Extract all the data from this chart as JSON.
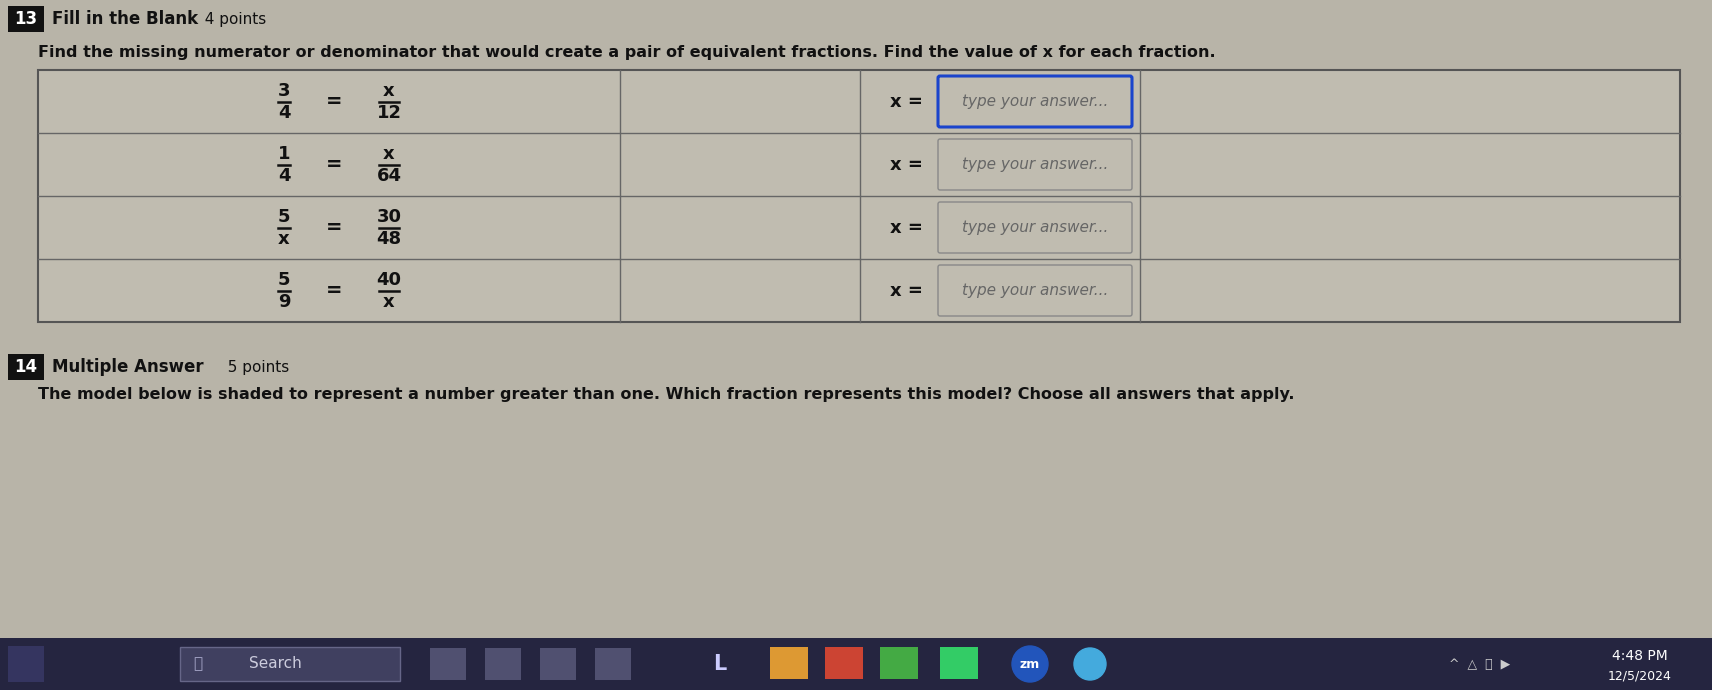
{
  "bg_color": "#b8b4a8",
  "table_bg": "#c0bcb0",
  "header_bg": "#111111",
  "question_num_13": "13",
  "question_num_14": "14",
  "q13_type": "Fill in the Blank",
  "q13_points": "4 points",
  "q13_instruction": "Find the missing numerator or denominator that would create a pair of equivalent fractions. Find the value of x for each fraction.",
  "q14_type": "Multiple Answer",
  "q14_points": "5 points",
  "q14_instruction": "The model below is shaded to represent a number greater than one. Which fraction represents this model? Choose all answers that apply.",
  "fractions": [
    {
      "left_num": "3",
      "left_den": "4",
      "right_num": "x",
      "right_den": "12"
    },
    {
      "left_num": "1",
      "left_den": "4",
      "right_num": "x",
      "right_den": "64"
    },
    {
      "left_num": "5",
      "left_den": "x",
      "right_num": "30",
      "right_den": "48"
    },
    {
      "left_num": "5",
      "left_den": "9",
      "right_num": "40",
      "right_den": "x"
    }
  ],
  "answer_box_text": "type your answer...",
  "time_text": "4:48 PM",
  "date_text": "12/5/2024",
  "search_text": "Search",
  "taskbar_dark": "#1a1a2e",
  "taskbar_mid": "#2d2d4e"
}
